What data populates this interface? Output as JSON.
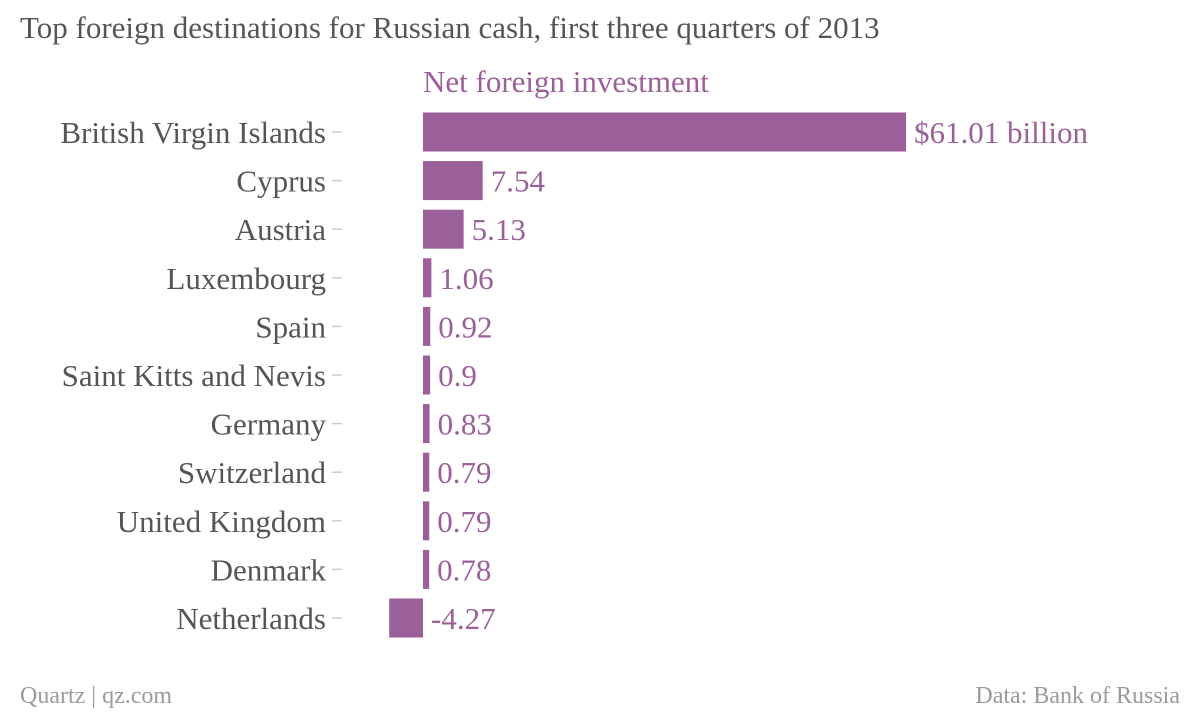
{
  "title": "Top foreign destinations for Russian cash, first three quarters of 2013",
  "footer": {
    "source_left": "Quartz | qz.com",
    "source_right": "Data: Bank of Russia"
  },
  "colors": {
    "bar": "#9b5f99",
    "label": "#9b5f99",
    "category_text": "#555555",
    "tick": "#cccccc",
    "footer": "#9a9a9a"
  },
  "chart_data": {
    "type": "bar",
    "orientation": "horizontal",
    "series": [
      {
        "name": "Net foreign investment",
        "values": [
          61.01,
          7.54,
          5.13,
          1.06,
          0.92,
          0.9,
          0.83,
          0.79,
          0.79,
          0.78,
          -4.27
        ]
      }
    ],
    "categories": [
      "British Virgin Islands",
      "Cyprus",
      "Austria",
      "Luxembourg",
      "Spain",
      "Saint Kitts and Nevis",
      "Germany",
      "Switzerland",
      "United Kingdom",
      "Denmark",
      "Netherlands"
    ],
    "value_labels": [
      "$61.01 billion",
      "7.54",
      "5.13",
      "1.06",
      "0.92",
      "0.9",
      "0.83",
      "0.79",
      "0.79",
      "0.78",
      "-4.27"
    ],
    "xlim": [
      -4.27,
      61.01
    ],
    "grid": false,
    "legend": "top"
  }
}
